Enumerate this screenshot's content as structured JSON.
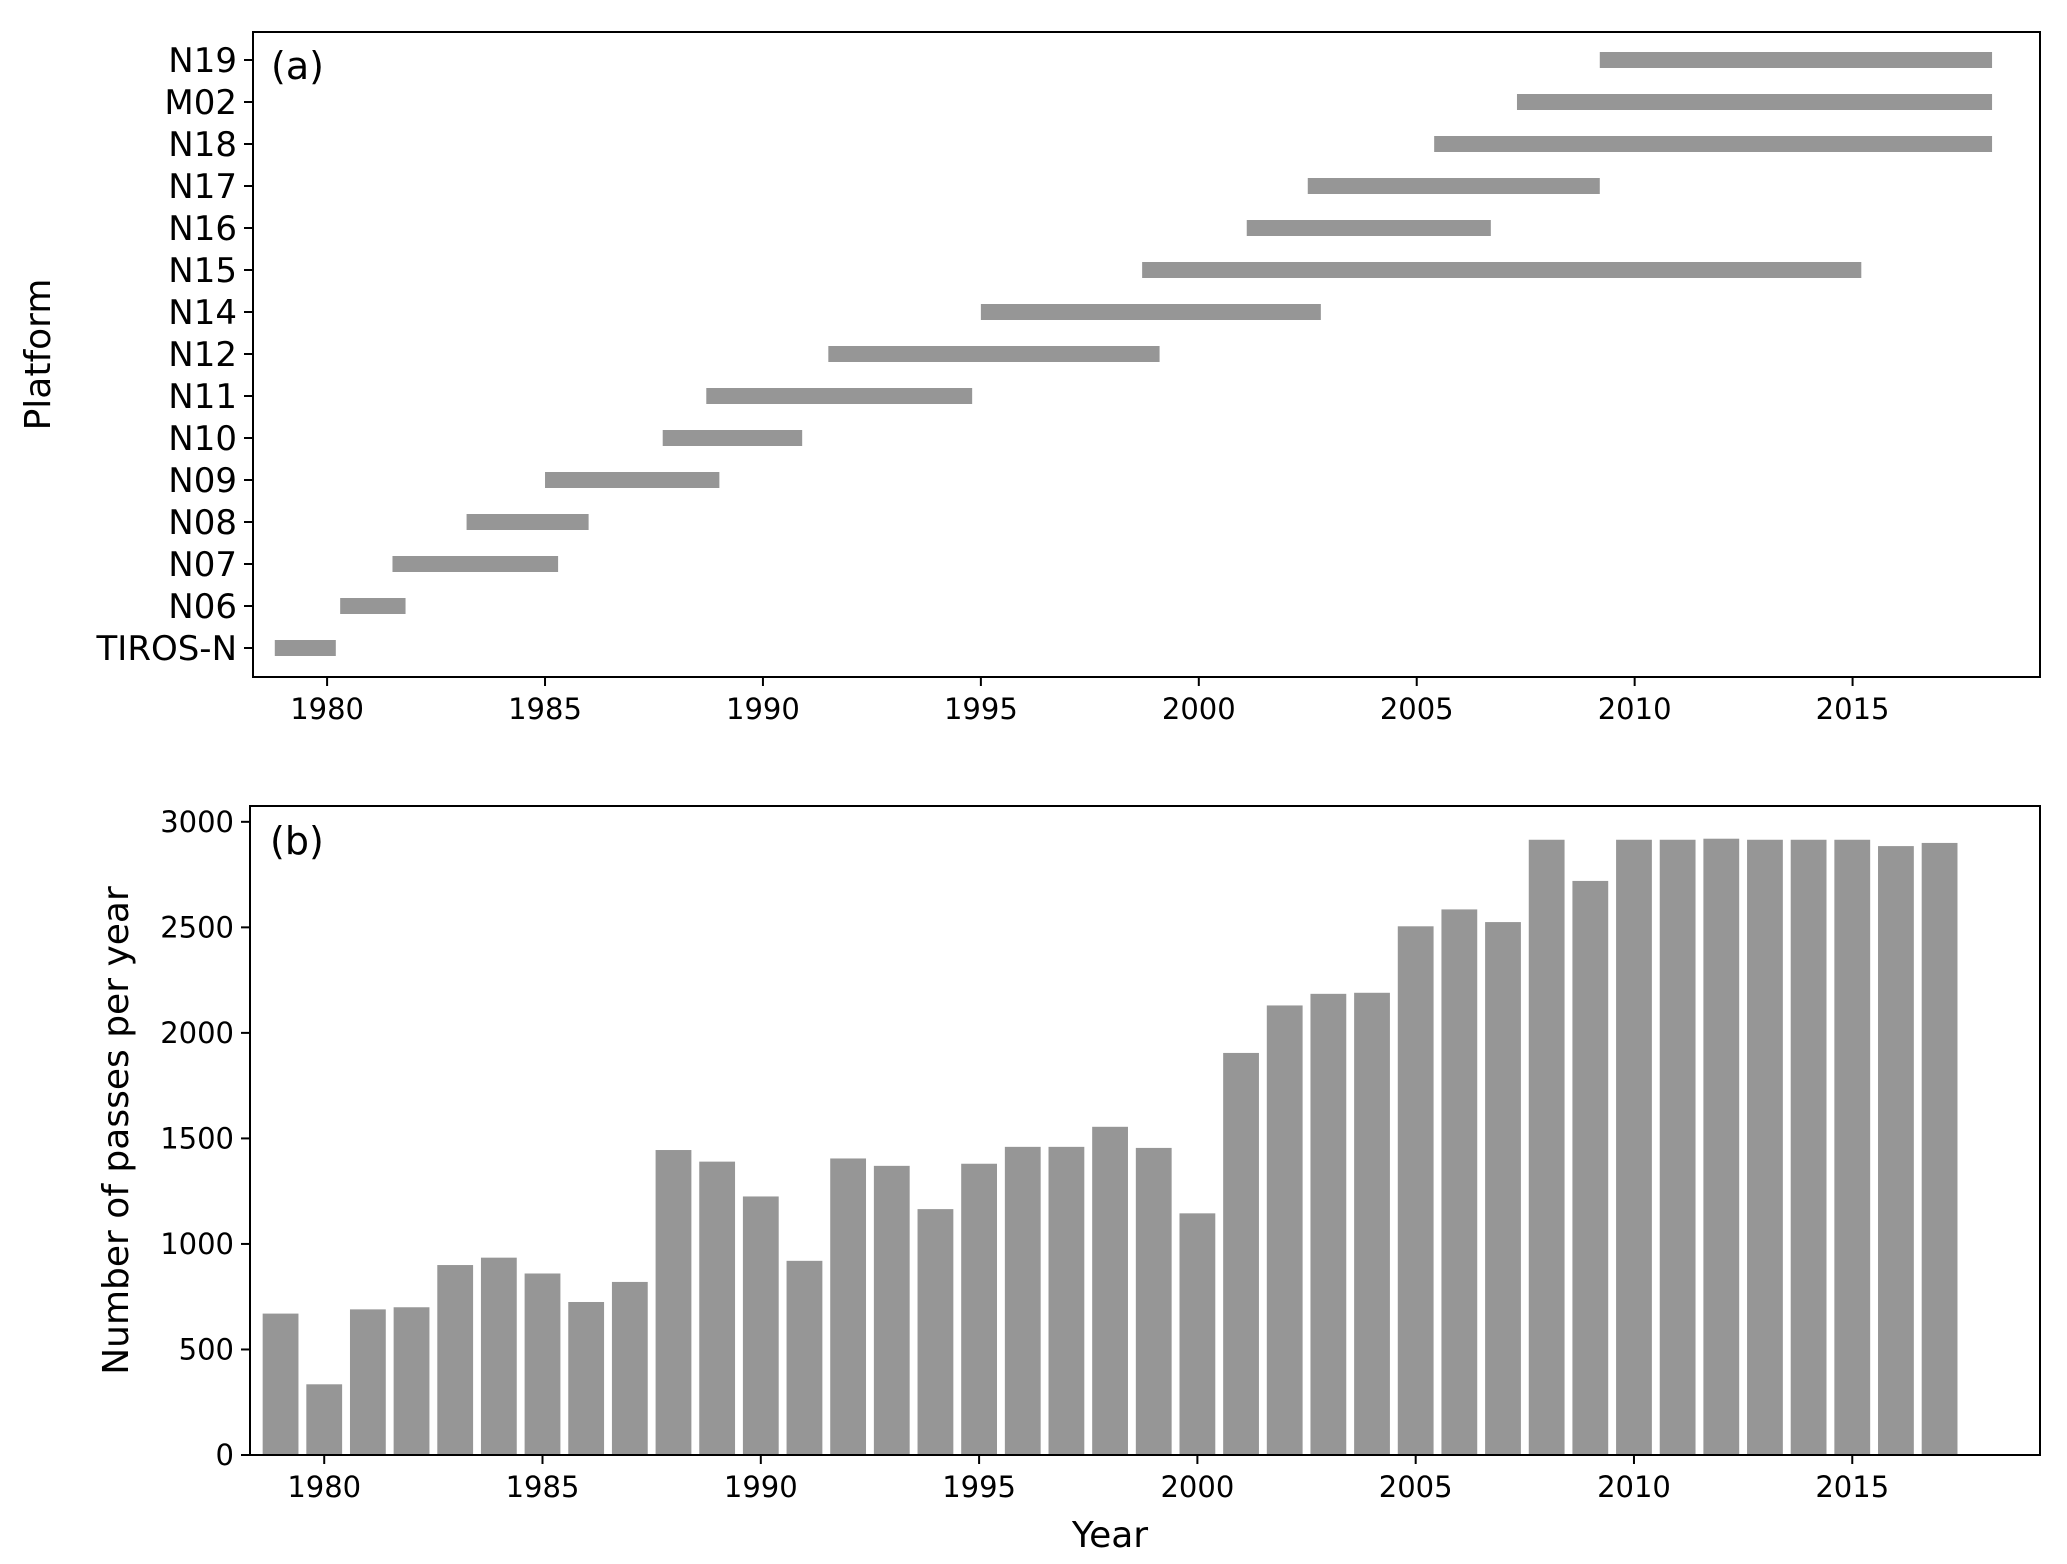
{
  "chart_data": [
    {
      "type": "bar",
      "orientation": "horizontal-range",
      "panel_label": "(a)",
      "ylabel": "Platform",
      "xlabel": "",
      "xlim": [
        1978.3,
        2019.3
      ],
      "xticks": [
        1980,
        1985,
        1990,
        1995,
        2000,
        2005,
        2010,
        2015
      ],
      "bar_color": "#969696",
      "grid": false,
      "categories": [
        "TIROS-N",
        "N06",
        "N07",
        "N08",
        "N09",
        "N10",
        "N11",
        "N12",
        "N14",
        "N15",
        "N16",
        "N17",
        "N18",
        "M02",
        "N19"
      ],
      "ranges": [
        [
          1978.8,
          1980.2
        ],
        [
          1980.3,
          1981.8
        ],
        [
          1981.5,
          1985.3
        ],
        [
          1983.2,
          1986.0
        ],
        [
          1985.0,
          1989.0
        ],
        [
          1987.7,
          1990.9
        ],
        [
          1988.7,
          1994.8
        ],
        [
          1991.5,
          1999.1
        ],
        [
          1995.0,
          2002.8
        ],
        [
          1998.7,
          2015.2
        ],
        [
          2001.1,
          2006.7
        ],
        [
          2002.5,
          2009.2
        ],
        [
          2005.4,
          2018.2
        ],
        [
          2007.3,
          2018.2
        ],
        [
          2009.2,
          2018.2
        ]
      ]
    },
    {
      "type": "bar",
      "panel_label": "(b)",
      "xlabel": "Year",
      "ylabel": "Number of passes per year",
      "xlim": [
        1978.3,
        2019.3
      ],
      "ylim": [
        0,
        3075
      ],
      "xticks": [
        1980,
        1985,
        1990,
        1995,
        2000,
        2005,
        2010,
        2015
      ],
      "yticks": [
        0,
        500,
        1000,
        1500,
        2000,
        2500,
        3000
      ],
      "bar_color": "#969696",
      "bar_width": 0.82,
      "grid": false,
      "x": [
        1979,
        1980,
        1981,
        1982,
        1983,
        1984,
        1985,
        1986,
        1987,
        1988,
        1989,
        1990,
        1991,
        1992,
        1993,
        1994,
        1995,
        1996,
        1997,
        1998,
        1999,
        2000,
        2001,
        2002,
        2003,
        2004,
        2005,
        2006,
        2007,
        2008,
        2009,
        2010,
        2011,
        2012,
        2013,
        2014,
        2015,
        2016,
        2017
      ],
      "values": [
        670,
        335,
        690,
        700,
        900,
        935,
        860,
        725,
        820,
        1445,
        1390,
        1225,
        920,
        1405,
        1370,
        1165,
        1380,
        1460,
        1460,
        1555,
        1455,
        1145,
        1905,
        2130,
        2185,
        2190,
        2505,
        2585,
        2525,
        2915,
        2720,
        2915,
        2915,
        2920,
        2915,
        2915,
        2915,
        2885,
        2900
      ]
    }
  ]
}
